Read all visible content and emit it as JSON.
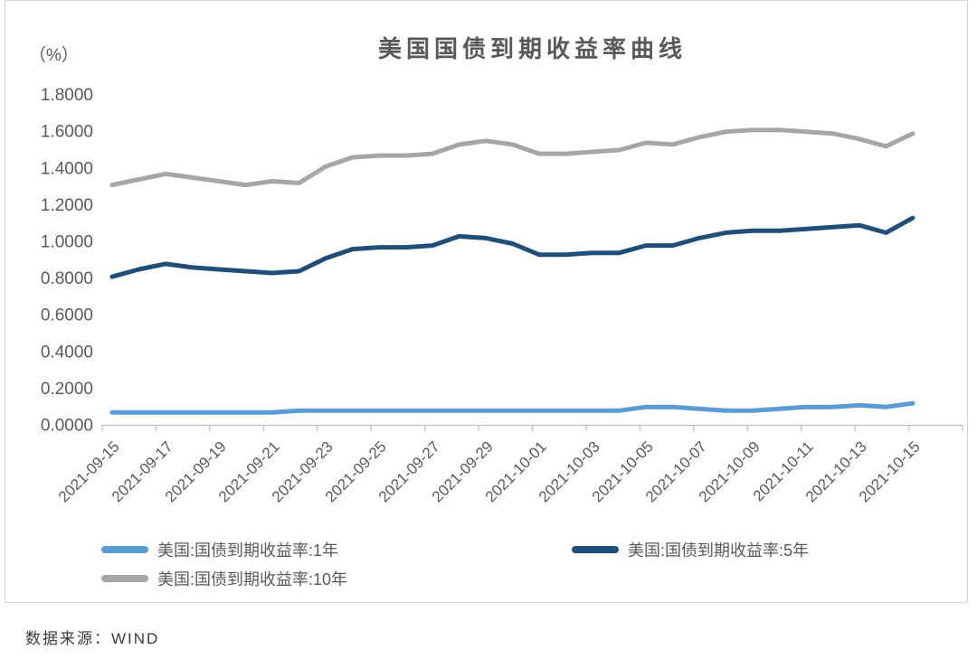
{
  "chart_data": {
    "type": "line",
    "title": "美国国债到期收益率曲线",
    "unit_label": "（%）",
    "ylim": [
      0,
      1.8
    ],
    "y_tick_step": 0.2,
    "y_tick_labels": [
      "0.0000",
      "0.2000",
      "0.4000",
      "0.6000",
      "0.8000",
      "1.0000",
      "1.2000",
      "1.4000",
      "1.6000",
      "1.8000"
    ],
    "x": [
      "2021-09-15",
      "2021-09-16",
      "2021-09-17",
      "2021-09-18",
      "2021-09-19",
      "2021-09-20",
      "2021-09-21",
      "2021-09-22",
      "2021-09-23",
      "2021-09-24",
      "2021-09-25",
      "2021-09-26",
      "2021-09-27",
      "2021-09-28",
      "2021-09-29",
      "2021-09-30",
      "2021-10-01",
      "2021-10-02",
      "2021-10-03",
      "2021-10-04",
      "2021-10-05",
      "2021-10-06",
      "2021-10-07",
      "2021-10-08",
      "2021-10-09",
      "2021-10-10",
      "2021-10-11",
      "2021-10-12",
      "2021-10-13",
      "2021-10-14",
      "2021-10-15"
    ],
    "x_tick_labels": [
      "2021-09-15",
      "2021-09-17",
      "2021-09-19",
      "2021-09-21",
      "2021-09-23",
      "2021-09-25",
      "2021-09-27",
      "2021-09-29",
      "2021-10-01",
      "2021-10-03",
      "2021-10-05",
      "2021-10-07",
      "2021-10-09",
      "2021-10-11",
      "2021-10-13",
      "2021-10-15"
    ],
    "series": [
      {
        "id": "1y",
        "name": "美国:国债到期收益率:1年",
        "color": "#5B9BD5",
        "values": [
          0.07,
          0.07,
          0.07,
          0.07,
          0.07,
          0.07,
          0.07,
          0.08,
          0.08,
          0.08,
          0.08,
          0.08,
          0.08,
          0.08,
          0.08,
          0.08,
          0.08,
          0.08,
          0.08,
          0.08,
          0.1,
          0.1,
          0.09,
          0.08,
          0.08,
          0.09,
          0.1,
          0.1,
          0.11,
          0.1,
          0.12
        ]
      },
      {
        "id": "5y",
        "name": "美国:国债到期收益率:5年",
        "color": "#1F4E79",
        "values": [
          0.81,
          0.85,
          0.88,
          0.86,
          0.85,
          0.84,
          0.83,
          0.84,
          0.91,
          0.96,
          0.97,
          0.97,
          0.98,
          1.03,
          1.02,
          0.99,
          0.93,
          0.93,
          0.94,
          0.94,
          0.98,
          0.98,
          1.02,
          1.05,
          1.06,
          1.06,
          1.07,
          1.08,
          1.09,
          1.05,
          1.13
        ]
      },
      {
        "id": "10y",
        "name": "美国:国债到期收益率:10年",
        "color": "#A6A6A6",
        "values": [
          1.31,
          1.34,
          1.37,
          1.35,
          1.33,
          1.31,
          1.33,
          1.32,
          1.41,
          1.46,
          1.47,
          1.47,
          1.48,
          1.53,
          1.55,
          1.53,
          1.48,
          1.48,
          1.49,
          1.5,
          1.54,
          1.53,
          1.57,
          1.6,
          1.61,
          1.61,
          1.6,
          1.59,
          1.56,
          1.52,
          1.59
        ]
      }
    ],
    "axis_color": "#BFBFBF",
    "text_color": "#595959",
    "legend_position": "bottom",
    "grid": false
  },
  "source": {
    "label": "数据来源：WIND"
  }
}
